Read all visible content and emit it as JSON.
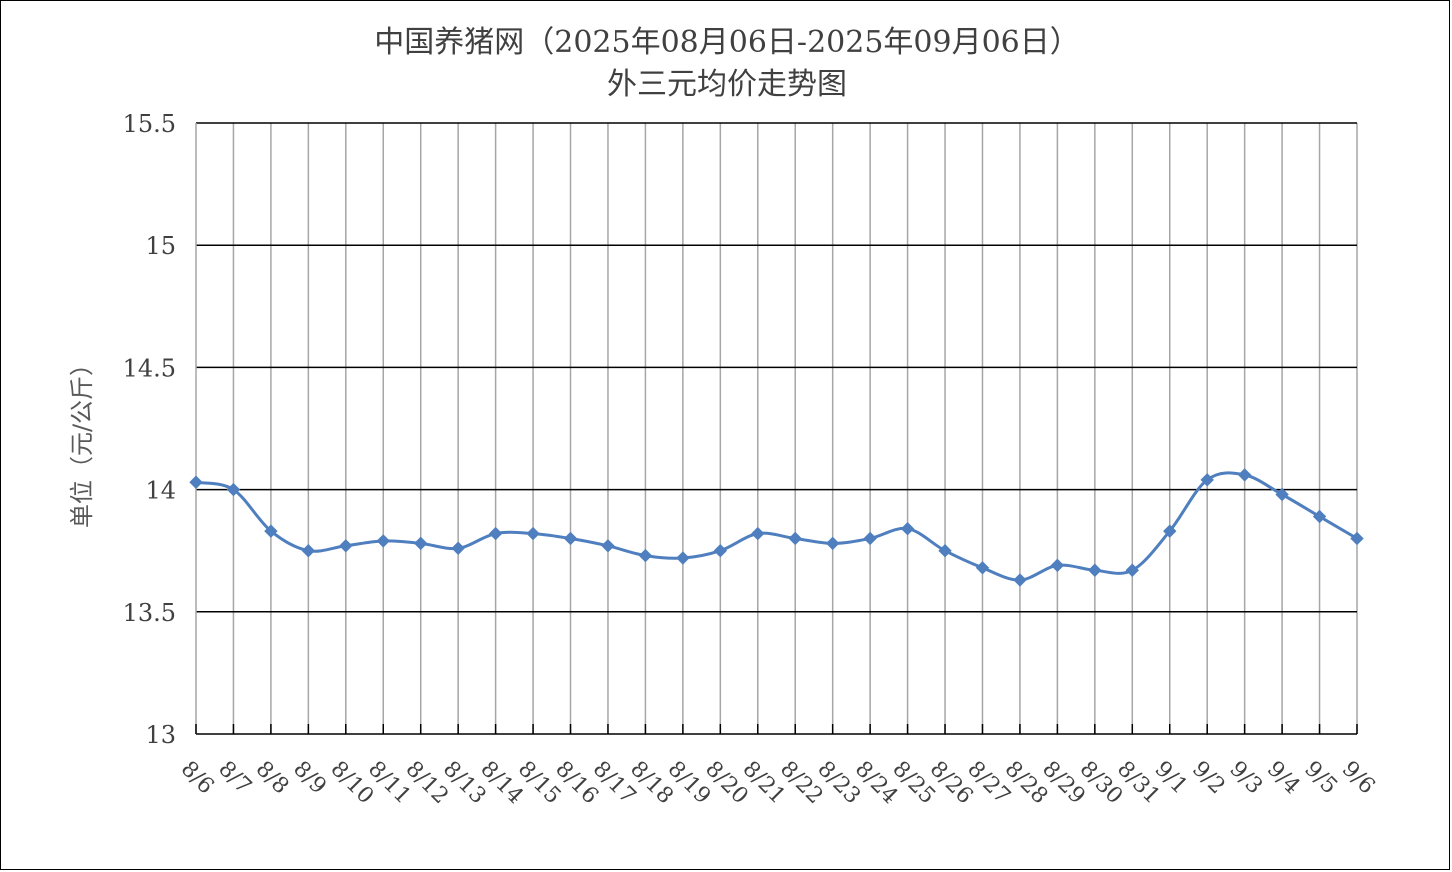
{
  "chart_data": {
    "type": "line",
    "title": "中国养猪网（2025年08月06日-2025年09月06日）",
    "subtitle": "外三元均价走势图",
    "xlabel": "",
    "ylabel": "单位（元/公斤）",
    "ylim": [
      13,
      15.5
    ],
    "yticks": [
      "13",
      "13.5",
      "14",
      "14.5",
      "15",
      "15.5"
    ],
    "categories": [
      "8/6",
      "8/7",
      "8/8",
      "8/9",
      "8/10",
      "8/11",
      "8/12",
      "8/13",
      "8/14",
      "8/15",
      "8/16",
      "8/17",
      "8/18",
      "8/19",
      "8/20",
      "8/21",
      "8/22",
      "8/23",
      "8/24",
      "8/25",
      "8/26",
      "8/27",
      "8/28",
      "8/29",
      "8/30",
      "8/31",
      "9/1",
      "9/2",
      "9/3",
      "9/4",
      "9/5",
      "9/6"
    ],
    "series": [
      {
        "values": [
          14.03,
          14.0,
          13.83,
          13.75,
          13.77,
          13.79,
          13.78,
          13.76,
          13.82,
          13.82,
          13.8,
          13.77,
          13.73,
          13.72,
          13.75,
          13.82,
          13.8,
          13.78,
          13.8,
          13.84,
          13.75,
          13.68,
          13.63,
          13.69,
          13.67,
          13.67,
          13.83,
          14.04,
          14.06,
          13.98,
          13.89,
          13.8
        ],
        "color": "#4F7FBE",
        "marker": "diamond"
      }
    ],
    "grid": true,
    "legend": "none"
  }
}
